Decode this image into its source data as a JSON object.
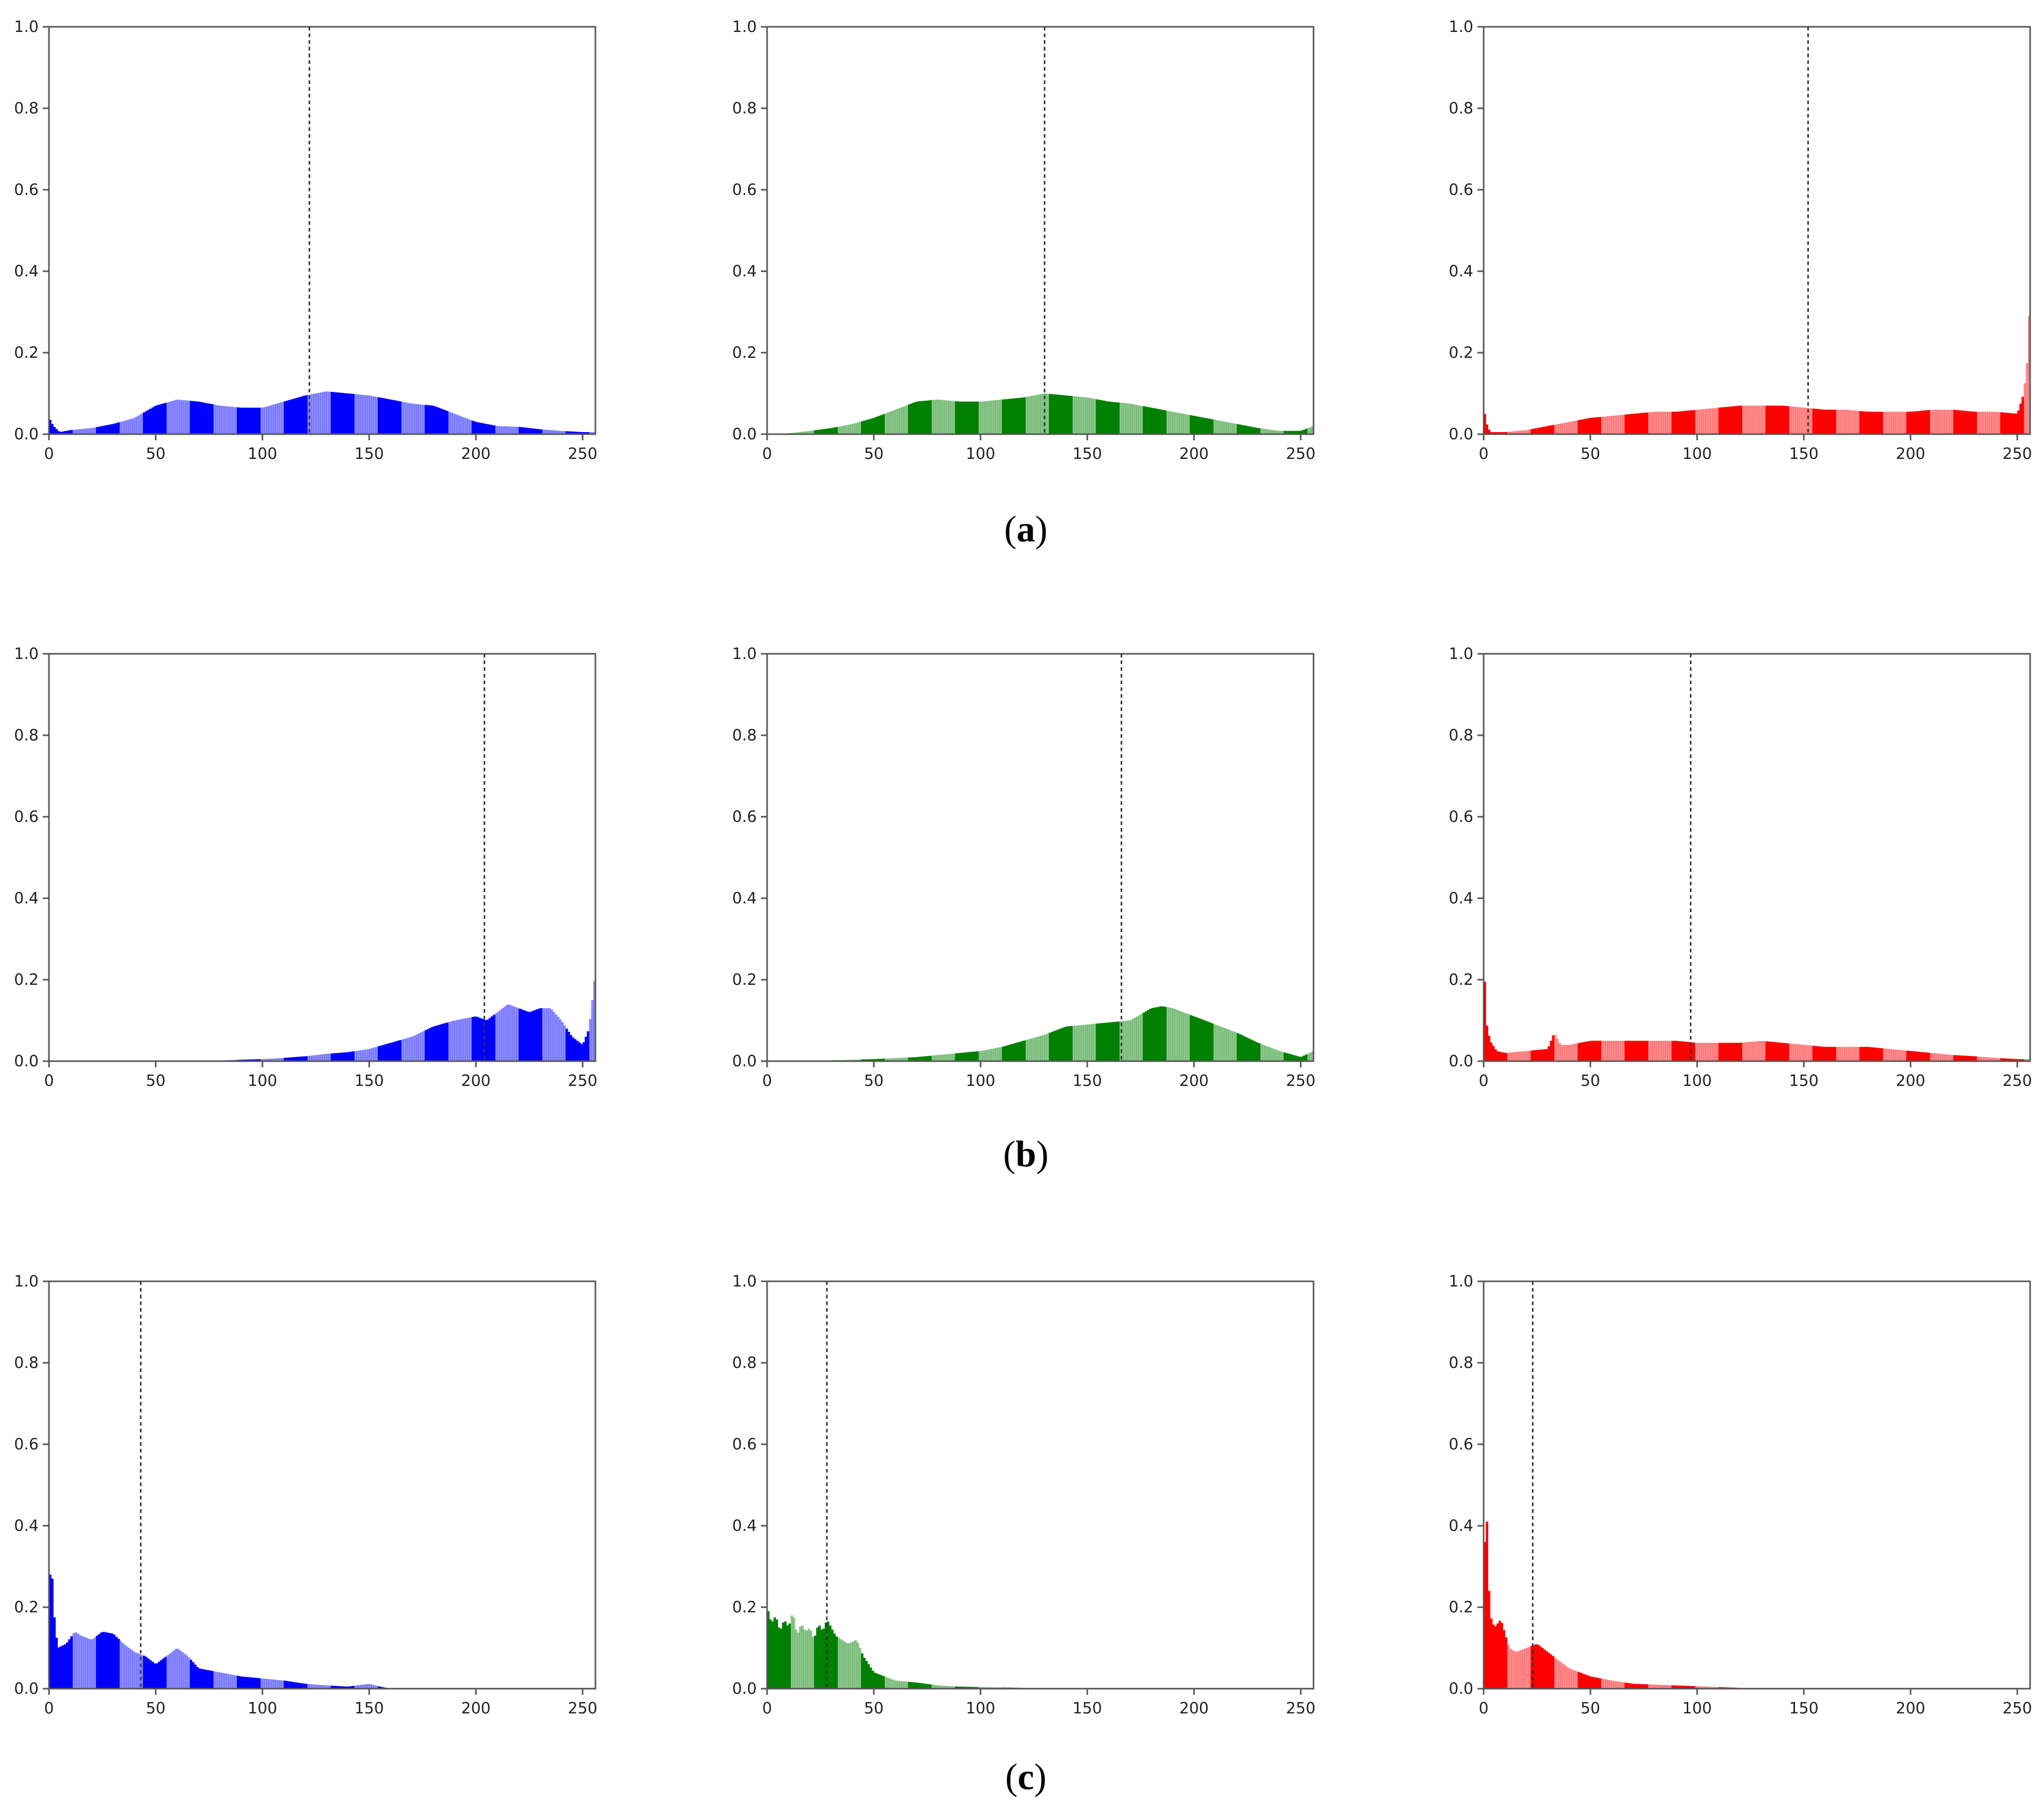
{
  "figure": {
    "panel_labels": [
      {
        "open": "(",
        "letter": "a",
        "close": ")"
      },
      {
        "open": "(",
        "letter": "b",
        "close": ")"
      },
      {
        "open": "(",
        "letter": "c",
        "close": ")"
      }
    ]
  },
  "chart_data": [
    {
      "type": "area",
      "panel": "a",
      "channel": "blue",
      "color": "#0000ff",
      "xlim": [
        0,
        256
      ],
      "ylim": [
        0,
        1.0
      ],
      "xticks": [
        0,
        50,
        100,
        150,
        200,
        250
      ],
      "yticks": [
        0.0,
        0.2,
        0.4,
        0.6,
        0.8,
        1.0
      ],
      "vline": 122,
      "x": [
        0,
        2,
        5,
        10,
        20,
        30,
        40,
        50,
        60,
        70,
        80,
        90,
        100,
        110,
        120,
        130,
        140,
        150,
        160,
        170,
        180,
        190,
        200,
        210,
        220,
        230,
        240,
        250,
        256
      ],
      "y": [
        0.04,
        0.02,
        0.005,
        0.01,
        0.015,
        0.025,
        0.04,
        0.07,
        0.085,
        0.08,
        0.07,
        0.065,
        0.065,
        0.08,
        0.095,
        0.105,
        0.1,
        0.095,
        0.085,
        0.075,
        0.07,
        0.05,
        0.03,
        0.02,
        0.018,
        0.012,
        0.008,
        0.005,
        0.005
      ]
    },
    {
      "type": "area",
      "panel": "a",
      "channel": "green",
      "color": "#008000",
      "xlim": [
        0,
        256
      ],
      "ylim": [
        0,
        1.0
      ],
      "xticks": [
        0,
        50,
        100,
        150,
        200,
        250
      ],
      "yticks": [
        0.0,
        0.2,
        0.4,
        0.6,
        0.8,
        1.0
      ],
      "vline": 130,
      "x": [
        0,
        10,
        20,
        30,
        40,
        50,
        60,
        70,
        80,
        90,
        100,
        110,
        120,
        130,
        140,
        150,
        160,
        170,
        180,
        190,
        200,
        210,
        220,
        230,
        240,
        250,
        256
      ],
      "y": [
        0.0,
        0.002,
        0.008,
        0.015,
        0.025,
        0.04,
        0.06,
        0.08,
        0.085,
        0.08,
        0.08,
        0.085,
        0.09,
        0.1,
        0.095,
        0.09,
        0.08,
        0.075,
        0.065,
        0.055,
        0.045,
        0.035,
        0.025,
        0.015,
        0.008,
        0.008,
        0.02
      ]
    },
    {
      "type": "area",
      "panel": "a",
      "channel": "red",
      "color": "#ff0000",
      "xlim": [
        0,
        256
      ],
      "ylim": [
        0,
        1.0
      ],
      "xticks": [
        0,
        50,
        100,
        150,
        200,
        250
      ],
      "yticks": [
        0.0,
        0.2,
        0.4,
        0.6,
        0.8,
        1.0
      ],
      "vline": 152,
      "x": [
        0,
        1,
        3,
        10,
        20,
        30,
        40,
        50,
        60,
        70,
        80,
        90,
        100,
        110,
        120,
        130,
        140,
        150,
        160,
        170,
        180,
        190,
        200,
        210,
        220,
        230,
        240,
        250,
        253,
        255,
        256
      ],
      "y": [
        0.07,
        0.03,
        0.005,
        0.005,
        0.01,
        0.02,
        0.03,
        0.04,
        0.045,
        0.05,
        0.055,
        0.055,
        0.06,
        0.065,
        0.07,
        0.07,
        0.07,
        0.065,
        0.06,
        0.06,
        0.055,
        0.055,
        0.055,
        0.06,
        0.06,
        0.055,
        0.055,
        0.05,
        0.1,
        0.2,
        0.38
      ]
    },
    {
      "type": "area",
      "panel": "b",
      "channel": "blue",
      "color": "#0000ff",
      "xlim": [
        0,
        256
      ],
      "ylim": [
        0,
        1.0
      ],
      "xticks": [
        0,
        50,
        100,
        150,
        200,
        250
      ],
      "yticks": [
        0.0,
        0.2,
        0.4,
        0.6,
        0.8,
        1.0
      ],
      "vline": 204,
      "x": [
        0,
        50,
        80,
        100,
        110,
        120,
        130,
        140,
        150,
        160,
        170,
        180,
        190,
        200,
        205,
        210,
        215,
        220,
        225,
        230,
        235,
        240,
        245,
        250,
        253,
        256
      ],
      "y": [
        0.0,
        0.0,
        0.002,
        0.005,
        0.008,
        0.012,
        0.018,
        0.022,
        0.03,
        0.045,
        0.06,
        0.085,
        0.1,
        0.11,
        0.1,
        0.12,
        0.14,
        0.13,
        0.12,
        0.13,
        0.13,
        0.1,
        0.06,
        0.04,
        0.08,
        0.22
      ]
    },
    {
      "type": "area",
      "panel": "b",
      "channel": "green",
      "color": "#008000",
      "xlim": [
        0,
        256
      ],
      "ylim": [
        0,
        1.0
      ],
      "xticks": [
        0,
        50,
        100,
        150,
        200,
        250
      ],
      "yticks": [
        0.0,
        0.2,
        0.4,
        0.6,
        0.8,
        1.0
      ],
      "vline": 166,
      "x": [
        0,
        30,
        50,
        70,
        90,
        100,
        110,
        120,
        130,
        140,
        150,
        160,
        170,
        180,
        185,
        190,
        200,
        210,
        220,
        230,
        240,
        250,
        256
      ],
      "y": [
        0.0,
        0.002,
        0.005,
        0.01,
        0.02,
        0.025,
        0.035,
        0.05,
        0.065,
        0.085,
        0.09,
        0.095,
        0.1,
        0.13,
        0.135,
        0.13,
        0.11,
        0.09,
        0.07,
        0.045,
        0.025,
        0.01,
        0.025
      ]
    },
    {
      "type": "area",
      "panel": "b",
      "channel": "red",
      "color": "#ff0000",
      "xlim": [
        0,
        256
      ],
      "ylim": [
        0,
        1.0
      ],
      "xticks": [
        0,
        50,
        100,
        150,
        200,
        250
      ],
      "yticks": [
        0.0,
        0.2,
        0.4,
        0.6,
        0.8,
        1.0
      ],
      "vline": 97,
      "x": [
        0,
        1,
        3,
        6,
        10,
        20,
        30,
        33,
        36,
        40,
        50,
        60,
        70,
        80,
        90,
        100,
        110,
        120,
        130,
        140,
        150,
        160,
        170,
        180,
        190,
        200,
        210,
        220,
        230,
        240,
        250,
        256
      ],
      "y": [
        0.29,
        0.1,
        0.05,
        0.025,
        0.02,
        0.025,
        0.03,
        0.07,
        0.04,
        0.04,
        0.05,
        0.05,
        0.05,
        0.05,
        0.05,
        0.045,
        0.045,
        0.045,
        0.05,
        0.045,
        0.04,
        0.035,
        0.035,
        0.035,
        0.03,
        0.025,
        0.02,
        0.015,
        0.012,
        0.008,
        0.005,
        0.005
      ]
    },
    {
      "type": "area",
      "panel": "c",
      "channel": "blue",
      "color": "#0000ff",
      "xlim": [
        0,
        256
      ],
      "ylim": [
        0,
        1.0
      ],
      "xticks": [
        0,
        50,
        100,
        150,
        200,
        250
      ],
      "yticks": [
        0.0,
        0.2,
        0.4,
        0.6,
        0.8,
        1.0
      ],
      "vline": 43,
      "x": [
        0,
        1,
        2,
        4,
        8,
        12,
        15,
        20,
        25,
        30,
        35,
        40,
        45,
        50,
        55,
        60,
        65,
        70,
        80,
        90,
        100,
        110,
        120,
        130,
        140,
        150,
        155,
        160,
        256
      ],
      "y": [
        0.22,
        0.34,
        0.2,
        0.1,
        0.11,
        0.14,
        0.13,
        0.12,
        0.14,
        0.135,
        0.11,
        0.09,
        0.08,
        0.06,
        0.08,
        0.1,
        0.08,
        0.05,
        0.04,
        0.03,
        0.025,
        0.02,
        0.012,
        0.008,
        0.005,
        0.012,
        0.005,
        0.0,
        0.0
      ]
    },
    {
      "type": "area",
      "panel": "c",
      "channel": "green",
      "color": "#008000",
      "xlim": [
        0,
        256
      ],
      "ylim": [
        0,
        1.0
      ],
      "xticks": [
        0,
        50,
        100,
        150,
        200,
        250
      ],
      "yticks": [
        0.0,
        0.2,
        0.4,
        0.6,
        0.8,
        1.0
      ],
      "vline": 28,
      "x": [
        0,
        2,
        4,
        6,
        8,
        10,
        12,
        14,
        16,
        18,
        20,
        22,
        24,
        26,
        28,
        30,
        32,
        35,
        38,
        42,
        45,
        50,
        55,
        60,
        70,
        80,
        90,
        100,
        110,
        120,
        130,
        256
      ],
      "y": [
        0.2,
        0.16,
        0.18,
        0.14,
        0.17,
        0.15,
        0.19,
        0.13,
        0.16,
        0.14,
        0.15,
        0.12,
        0.16,
        0.14,
        0.17,
        0.15,
        0.13,
        0.12,
        0.11,
        0.12,
        0.08,
        0.04,
        0.03,
        0.02,
        0.015,
        0.008,
        0.005,
        0.004,
        0.003,
        0.002,
        0.0,
        0.0
      ]
    },
    {
      "type": "area",
      "panel": "c",
      "channel": "red",
      "color": "#ff0000",
      "xlim": [
        0,
        256
      ],
      "ylim": [
        0,
        1.0
      ],
      "xticks": [
        0,
        50,
        100,
        150,
        200,
        250
      ],
      "yticks": [
        0.0,
        0.2,
        0.4,
        0.6,
        0.8,
        1.0
      ],
      "vline": 23,
      "x": [
        0,
        1,
        2,
        3,
        5,
        8,
        12,
        15,
        20,
        25,
        30,
        40,
        50,
        60,
        70,
        80,
        90,
        100,
        110,
        120,
        130,
        256
      ],
      "y": [
        0.2,
        0.52,
        0.3,
        0.18,
        0.15,
        0.17,
        0.1,
        0.09,
        0.1,
        0.11,
        0.09,
        0.05,
        0.03,
        0.02,
        0.012,
        0.01,
        0.008,
        0.006,
        0.004,
        0.002,
        0.0,
        0.0
      ]
    }
  ]
}
